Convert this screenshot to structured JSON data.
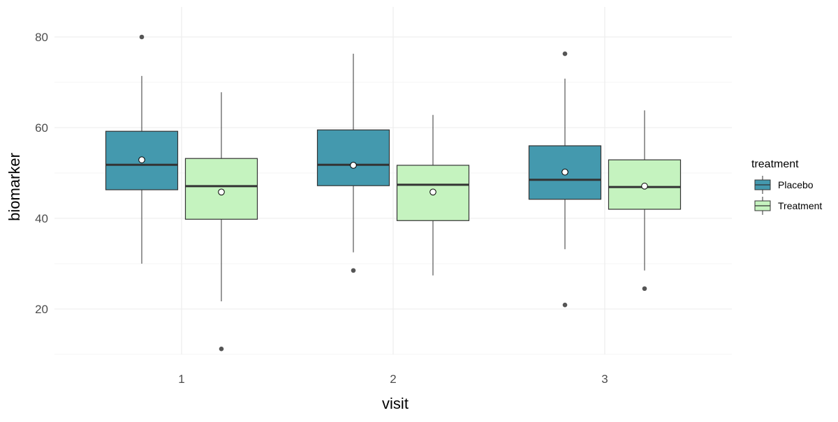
{
  "chart_data": {
    "type": "boxplot",
    "xlabel": "visit",
    "ylabel": "biomarker",
    "categories": [
      "1",
      "2",
      "3"
    ],
    "ylim": [
      10,
      86.6
    ],
    "yticks": [
      20,
      40,
      60,
      80
    ],
    "grid": true,
    "legend": {
      "title": "treatment",
      "placement": "right",
      "entries": [
        "Placebo",
        "Treatment"
      ]
    },
    "series": [
      {
        "name": "Placebo",
        "color": "#4499AE",
        "boxes": [
          {
            "visit": "1",
            "whisker_low": 30.0,
            "q1": 46.3,
            "median": 51.8,
            "q3": 59.2,
            "whisker_high": 71.4,
            "mean": 52.9,
            "outliers": [
              80.0
            ]
          },
          {
            "visit": "2",
            "whisker_low": 32.5,
            "q1": 47.2,
            "median": 51.8,
            "q3": 59.5,
            "whisker_high": 76.3,
            "mean": 51.7,
            "outliers": [
              28.5
            ]
          },
          {
            "visit": "3",
            "whisker_low": 33.2,
            "q1": 44.2,
            "median": 48.5,
            "q3": 56.0,
            "whisker_high": 70.8,
            "mean": 50.2,
            "outliers": [
              76.3,
              20.9
            ]
          }
        ]
      },
      {
        "name": "Treatment",
        "color": "#C5F3BF",
        "boxes": [
          {
            "visit": "1",
            "whisker_low": 21.7,
            "q1": 39.8,
            "median": 47.1,
            "q3": 53.2,
            "whisker_high": 67.8,
            "mean": 45.8,
            "outliers": [
              11.2
            ]
          },
          {
            "visit": "2",
            "whisker_low": 27.4,
            "q1": 39.5,
            "median": 47.4,
            "q3": 51.7,
            "whisker_high": 62.8,
            "mean": 45.8,
            "outliers": []
          },
          {
            "visit": "3",
            "whisker_low": 28.5,
            "q1": 42.0,
            "median": 46.9,
            "q3": 52.9,
            "whisker_high": 63.8,
            "mean": 47.1,
            "outliers": [
              24.5
            ]
          }
        ]
      }
    ]
  }
}
